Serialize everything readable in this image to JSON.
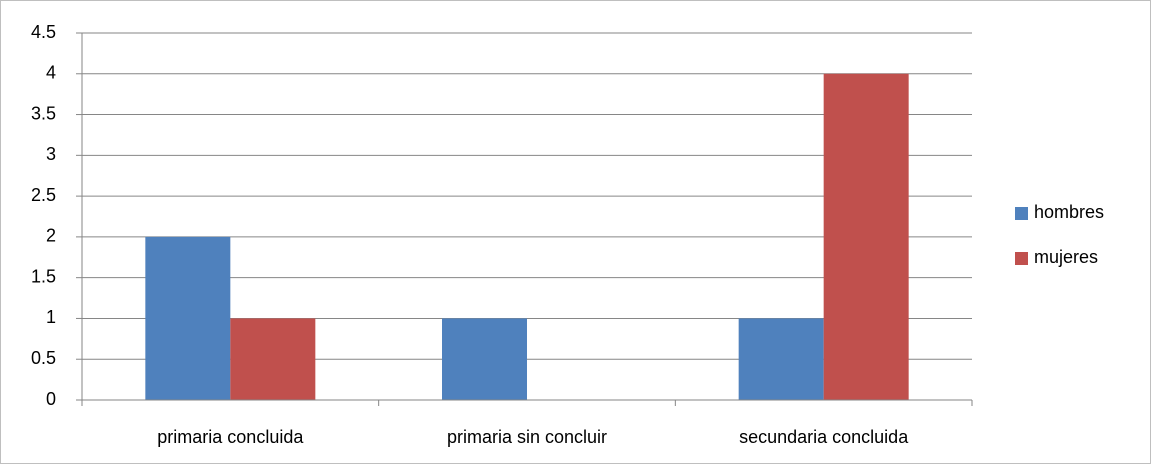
{
  "chart_data": {
    "type": "bar",
    "categories": [
      "primaria concluida",
      "primaria sin concluir",
      "secundaria concluida"
    ],
    "series": [
      {
        "name": "hombres",
        "color": "#4f81bd",
        "values": [
          2,
          1,
          1
        ]
      },
      {
        "name": "mujeres",
        "color": "#c0504d",
        "values": [
          1,
          0,
          4
        ]
      }
    ],
    "ylim": [
      0,
      4.5
    ],
    "yticks": [
      0,
      0.5,
      1,
      1.5,
      2,
      2.5,
      3,
      3.5,
      4,
      4.5
    ],
    "grid": true,
    "legend": "right"
  }
}
